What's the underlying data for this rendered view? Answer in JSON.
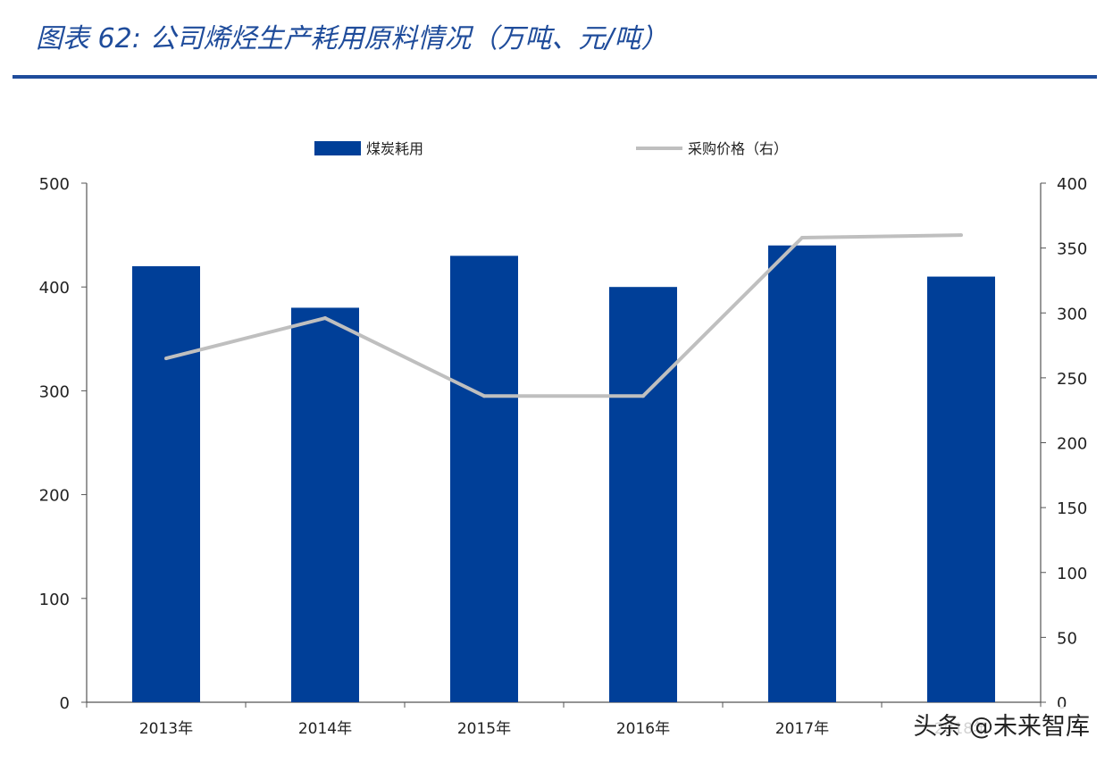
{
  "title": "图表 62: 公司烯烃生产耗用原料情况（万吨、元/吨）",
  "watermark": "头条 @未来智库",
  "colors": {
    "bar": "#003f98",
    "line": "#bfbfbf",
    "accent": "#1f4c9b"
  },
  "chart_data": {
    "type": "bar+line",
    "categories": [
      "2013年",
      "2014年",
      "2015年",
      "2016年",
      "2017年",
      "2018年"
    ],
    "series": [
      {
        "name": "煤炭耗用",
        "type": "bar",
        "axis": "left",
        "values": [
          420,
          380,
          430,
          400,
          440,
          410
        ]
      },
      {
        "name": "采购价格（右）",
        "type": "line",
        "axis": "right",
        "values": [
          265,
          296,
          236,
          236,
          358,
          360
        ]
      }
    ],
    "yleft": {
      "lim": [
        0,
        500
      ],
      "ticks": [
        "0",
        "100",
        "200",
        "300",
        "400",
        "500"
      ]
    },
    "yright": {
      "lim": [
        0,
        400
      ],
      "ticks": [
        "0",
        "50",
        "100",
        "150",
        "200",
        "250",
        "300",
        "350",
        "400"
      ]
    },
    "legend": {
      "placement": "top"
    },
    "grid": false
  }
}
